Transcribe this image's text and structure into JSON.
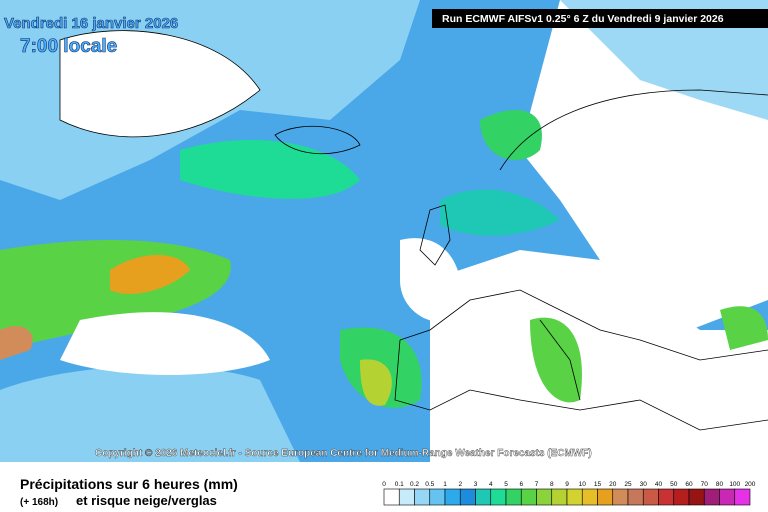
{
  "header": {
    "date": "Vendredi 16 janvier 2026",
    "time": "7:00 locale",
    "run": "Run ECMWF AIFSv1 0.25° 6 Z du Vendredi 9 janvier 2026"
  },
  "copyright": "Copyright © 2026 Meteociel.fr - Source European Centre for Medium-Range Weather Forecasts (ECMWF)",
  "caption": {
    "title": "Précipitations sur 6 heures (mm)",
    "lead": "(+ 168h)",
    "subtitle": "et risque neige/verglas"
  },
  "legend": {
    "labels": [
      0,
      0.1,
      0.2,
      0.5,
      1,
      2,
      3,
      4,
      5,
      6,
      7,
      8,
      9,
      10,
      15,
      20,
      25,
      30,
      40,
      50,
      60,
      70,
      80,
      100,
      200
    ],
    "colors": [
      "#ffffff",
      "#c8ebfa",
      "#96d7f5",
      "#64c3f0",
      "#2daaeb",
      "#1e8cdc",
      "#1ec8b4",
      "#1edc96",
      "#32d264",
      "#5ad246",
      "#8cd23c",
      "#b4d232",
      "#d2d232",
      "#e6be28",
      "#e6a01e",
      "#d28c5a",
      "#c8785a",
      "#c85a46",
      "#c83232",
      "#b41e1e",
      "#961414",
      "#a01e78",
      "#c828b4",
      "#e632e6"
    ]
  }
}
